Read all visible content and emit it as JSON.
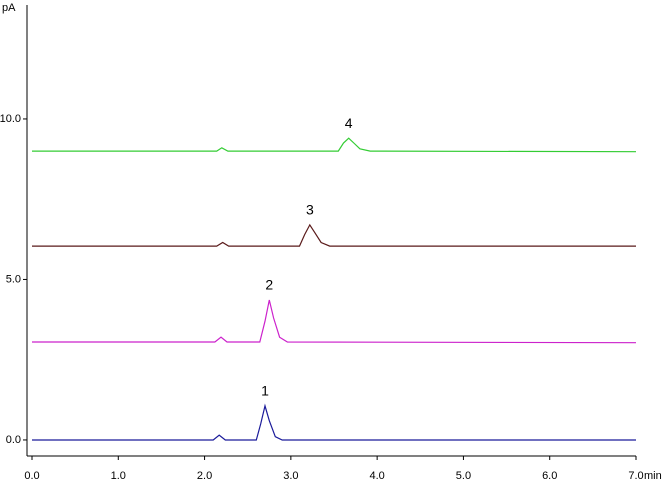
{
  "chart_data": {
    "type": "line",
    "ylabel": "pA",
    "xlabel": "min",
    "xlim": [
      0,
      7.0
    ],
    "ylim": [
      -0.5,
      13.55
    ],
    "xticks": [
      {
        "value": 0,
        "label": "0.0"
      },
      {
        "value": 1,
        "label": "1.0"
      },
      {
        "value": 2,
        "label": "2.0"
      },
      {
        "value": 3,
        "label": "3.0"
      },
      {
        "value": 4,
        "label": "4.0"
      },
      {
        "value": 5,
        "label": "5.0"
      },
      {
        "value": 6,
        "label": "6.0"
      },
      {
        "value": 7,
        "label": "7.0"
      }
    ],
    "yticks": [
      {
        "value": 0,
        "label": "0.0"
      },
      {
        "value": 5,
        "label": "5.0"
      },
      {
        "value": 10,
        "label": "10.0"
      }
    ],
    "series": [
      {
        "name": "1",
        "color": "#1a1a9a",
        "x": [
          0,
          2.1,
          2.17,
          2.24,
          2.6,
          2.65,
          2.7,
          2.75,
          2.82,
          2.9,
          7.0
        ],
        "values": [
          0.0,
          0.0,
          0.15,
          0.0,
          0.0,
          0.5,
          1.06,
          0.6,
          0.1,
          0.0,
          0.0
        ]
      },
      {
        "name": "2",
        "color": "#cc22cc",
        "x": [
          0,
          2.12,
          2.19,
          2.26,
          2.64,
          2.7,
          2.75,
          2.8,
          2.87,
          2.96,
          7.0
        ],
        "values": [
          3.05,
          3.05,
          3.2,
          3.05,
          3.05,
          3.7,
          4.36,
          3.8,
          3.2,
          3.05,
          3.03
        ]
      },
      {
        "name": "3",
        "color": "#5a1a1a",
        "x": [
          0,
          2.14,
          2.21,
          2.28,
          3.1,
          3.16,
          3.22,
          3.28,
          3.35,
          3.45,
          7.0
        ],
        "values": [
          6.04,
          6.04,
          6.15,
          6.04,
          6.04,
          6.4,
          6.7,
          6.45,
          6.15,
          6.04,
          6.04
        ]
      },
      {
        "name": "4",
        "color": "#33cc33",
        "x": [
          0,
          2.14,
          2.2,
          2.27,
          3.55,
          3.61,
          3.67,
          3.73,
          3.8,
          3.92,
          7.0
        ],
        "values": [
          9.0,
          9.0,
          9.1,
          9.0,
          9.0,
          9.25,
          9.4,
          9.25,
          9.07,
          9.0,
          8.98
        ]
      }
    ]
  }
}
